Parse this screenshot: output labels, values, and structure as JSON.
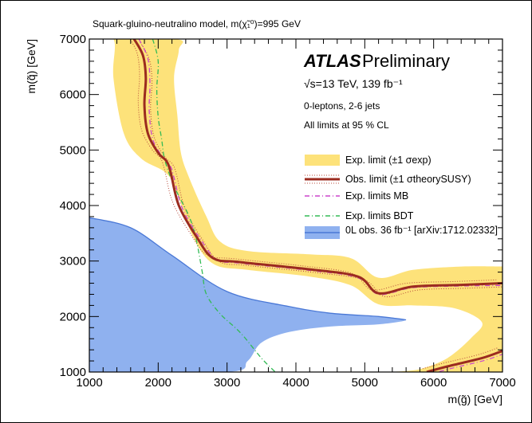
{
  "chart_data": {
    "type": "area",
    "title": "Squark-gluino-neutralino model, m(χ̃₁⁰)=995 GeV",
    "xlabel": "m(g̃) [GeV]",
    "ylabel": "m(q̃) [GeV]",
    "xlim": [
      1000,
      7000
    ],
    "ylim": [
      1000,
      7000
    ],
    "x_ticks": [
      "1000",
      "2000",
      "3000",
      "4000",
      "5000",
      "6000",
      "7000"
    ],
    "y_ticks": [
      "1000",
      "2000",
      "3000",
      "4000",
      "5000",
      "6000",
      "7000"
    ],
    "experiment": "ATLAS",
    "status": "Preliminary",
    "energy_lumi": "√s=13 TeV, 139 fb⁻¹",
    "selection": "0-leptons, 2-6 jets",
    "cl_note": "All limits at 95 % CL",
    "legend_position": "right",
    "colors": {
      "exp_band": "#fde27a",
      "obs": "#9b2b1f",
      "mb": "#cc44cc",
      "bdt": "#33bb55",
      "old": "#8fb1ef",
      "old_line": "#4a78d6"
    },
    "series": [
      {
        "name": "Exp. limit (±1 σexp)",
        "style": "band",
        "upper": [
          [
            1000,
            7000
          ],
          [
            2250,
            7000
          ],
          [
            2300,
            6800
          ],
          [
            2230,
            6300
          ],
          [
            2280,
            5600
          ],
          [
            2330,
            4950
          ],
          [
            2450,
            4500
          ],
          [
            2700,
            3800
          ],
          [
            2900,
            3350
          ],
          [
            3300,
            3180
          ],
          [
            4200,
            3120
          ],
          [
            4800,
            3050
          ],
          [
            5200,
            2700
          ],
          [
            5700,
            2840
          ],
          [
            6400,
            2900
          ],
          [
            7000,
            2900
          ]
        ],
        "lower": [
          [
            1000,
            7000
          ],
          [
            1350,
            7000
          ],
          [
            1350,
            6300
          ],
          [
            1500,
            5300
          ],
          [
            1750,
            4850
          ],
          [
            2100,
            4600
          ],
          [
            2250,
            4300
          ],
          [
            2500,
            3450
          ],
          [
            2800,
            2950
          ],
          [
            3300,
            2840
          ],
          [
            4200,
            2720
          ],
          [
            4800,
            2560
          ],
          [
            5200,
            2220
          ],
          [
            5700,
            2200
          ],
          [
            6300,
            2150
          ],
          [
            6700,
            1900
          ],
          [
            6550,
            1620
          ],
          [
            6200,
            1250
          ],
          [
            5800,
            1050
          ],
          [
            5500,
            1000
          ]
        ]
      },
      {
        "name": "Obs. limit (±1 σtheorySUSY)",
        "style": "line",
        "points": [
          [
            1650,
            7000
          ],
          [
            1780,
            6700
          ],
          [
            1820,
            6300
          ],
          [
            1800,
            5800
          ],
          [
            1850,
            5300
          ],
          [
            2000,
            4950
          ],
          [
            2120,
            4800
          ],
          [
            2180,
            4600
          ],
          [
            2300,
            4000
          ],
          [
            2550,
            3450
          ],
          [
            2800,
            3050
          ],
          [
            3200,
            2980
          ],
          [
            4200,
            2850
          ],
          [
            4900,
            2720
          ],
          [
            5200,
            2420
          ],
          [
            5700,
            2540
          ],
          [
            6400,
            2570
          ],
          [
            7000,
            2600
          ]
        ],
        "lower_branch": [
          [
            5900,
            1000
          ],
          [
            6200,
            1100
          ],
          [
            6700,
            1250
          ],
          [
            7000,
            1380
          ]
        ]
      },
      {
        "name": "Exp. limits MB",
        "style": "dash-dot",
        "points": [
          [
            1720,
            7000
          ],
          [
            1850,
            6650
          ],
          [
            1880,
            6200
          ],
          [
            1870,
            5700
          ],
          [
            1920,
            5200
          ],
          [
            2050,
            4900
          ],
          [
            2180,
            4700
          ],
          [
            2230,
            4500
          ],
          [
            2350,
            3950
          ],
          [
            2600,
            3420
          ],
          [
            2850,
            3030
          ],
          [
            3200,
            2960
          ],
          [
            4200,
            2830
          ],
          [
            4900,
            2700
          ],
          [
            5200,
            2400
          ],
          [
            5700,
            2520
          ],
          [
            6400,
            2550
          ],
          [
            7000,
            2560
          ]
        ]
      },
      {
        "name": "Exp. limits BDT",
        "style": "dash-dot",
        "points": [
          [
            1920,
            7000
          ],
          [
            2000,
            6600
          ],
          [
            1980,
            6100
          ],
          [
            2000,
            5600
          ],
          [
            2050,
            5200
          ],
          [
            2100,
            4800
          ],
          [
            2250,
            4300
          ],
          [
            2450,
            3800
          ],
          [
            2550,
            3400
          ],
          [
            2640,
            2800
          ],
          [
            2700,
            2400
          ],
          [
            2900,
            2050
          ],
          [
            3200,
            1700
          ],
          [
            3500,
            1250
          ],
          [
            3700,
            1000
          ]
        ]
      },
      {
        "name": "0L obs. 36 fb⁻¹ [arXiv:1712.02332]",
        "style": "filled",
        "boundary": [
          [
            1000,
            3780
          ],
          [
            1600,
            3600
          ],
          [
            2200,
            3100
          ],
          [
            3000,
            2450
          ],
          [
            3900,
            2180
          ],
          [
            4500,
            2060
          ],
          [
            5200,
            2000
          ],
          [
            5600,
            1940
          ],
          [
            5200,
            1860
          ],
          [
            4500,
            1820
          ],
          [
            3900,
            1720
          ],
          [
            3500,
            1530
          ],
          [
            3300,
            1200
          ],
          [
            3000,
            1000
          ],
          [
            1000,
            1000
          ]
        ]
      }
    ]
  }
}
